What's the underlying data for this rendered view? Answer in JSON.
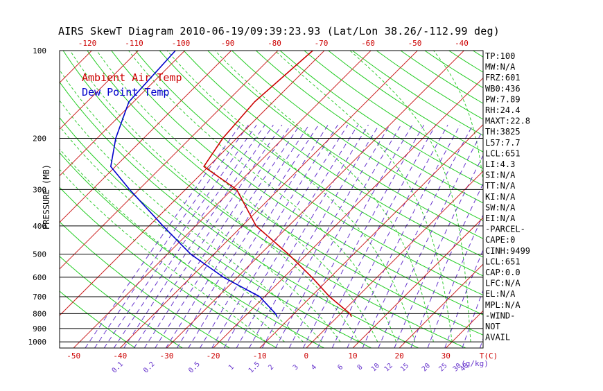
{
  "chart_data": {
    "type": "line",
    "title": "AIRS SkewT Diagram 2010-06-19/09:39:23.93 (Lat/Lon 38.26/-112.99 deg)",
    "ylabel": "PRESSURE (MB)",
    "xlabel": "T(C)",
    "mixing_ratio_unit": "(g/kg)",
    "y_scale": "log",
    "ylim": [
      1050,
      100
    ],
    "xlim": [
      -53,
      38
    ],
    "pressure_ticks": [
      100,
      200,
      300,
      400,
      500,
      600,
      700,
      800,
      900,
      1000
    ],
    "bottom_temp_ticks": [
      -50,
      -40,
      -30,
      -20,
      -10,
      0,
      10,
      20,
      30
    ],
    "top_temp_ticks": [
      -120,
      -110,
      -100,
      -90,
      -80,
      -70,
      -60,
      -50,
      -40
    ],
    "mixing_ratio_ticks": [
      "0.1",
      "0.2",
      "0.5",
      "1",
      "1.5",
      "2",
      "3",
      "4",
      "6",
      "8",
      "10",
      "12",
      "15",
      "20",
      "25",
      "30",
      "40"
    ],
    "legend": [
      "Ambient Air Temp",
      "Dew Point Temp"
    ],
    "legend_position": "top-left",
    "grid": true,
    "colors": {
      "temp": "#cc0000",
      "dewpoint": "#0000cc",
      "isotherm": "#cc2222",
      "dry_adiabat": "#22cc22",
      "moist_adiabat": "#33cc33",
      "mixing_ratio": "#6633cc",
      "isobar": "#000000"
    },
    "series": [
      {
        "name": "Ambient Air Temp",
        "points": [
          [
            100,
            -62.5
          ],
          [
            150,
            -64
          ],
          [
            200,
            -63
          ],
          [
            250,
            -61
          ],
          [
            300,
            -49
          ],
          [
            400,
            -37
          ],
          [
            500,
            -24
          ],
          [
            600,
            -14
          ],
          [
            700,
            -6
          ],
          [
            800,
            2
          ],
          [
            820,
            3
          ]
        ]
      },
      {
        "name": "Dew Point Temp",
        "points": [
          [
            100,
            -92
          ],
          [
            150,
            -91
          ],
          [
            200,
            -86
          ],
          [
            250,
            -81
          ],
          [
            300,
            -72
          ],
          [
            400,
            -57
          ],
          [
            500,
            -45
          ],
          [
            600,
            -33
          ],
          [
            700,
            -21
          ],
          [
            800,
            -14
          ],
          [
            820,
            -13
          ]
        ]
      }
    ],
    "indices": [
      "TP:100",
      "MW:N/A",
      "FRZ:601",
      "WB0:436",
      "PW:7.89",
      "RH:24.4",
      "MAXT:22.8",
      "TH:3825",
      "L57:7.7",
      "LCL:651",
      "LI:4.3",
      "SI:N/A",
      "TT:N/A",
      "KI:N/A",
      "SW:N/A",
      "EI:N/A",
      "-PARCEL-",
      "CAPE:0",
      "CINH:9499",
      "LCL:651",
      "CAP:0.0",
      "LFC:N/A",
      "EL:N/A",
      "MPL:N/A",
      "-WIND-",
      "NOT",
      "AVAIL"
    ]
  }
}
